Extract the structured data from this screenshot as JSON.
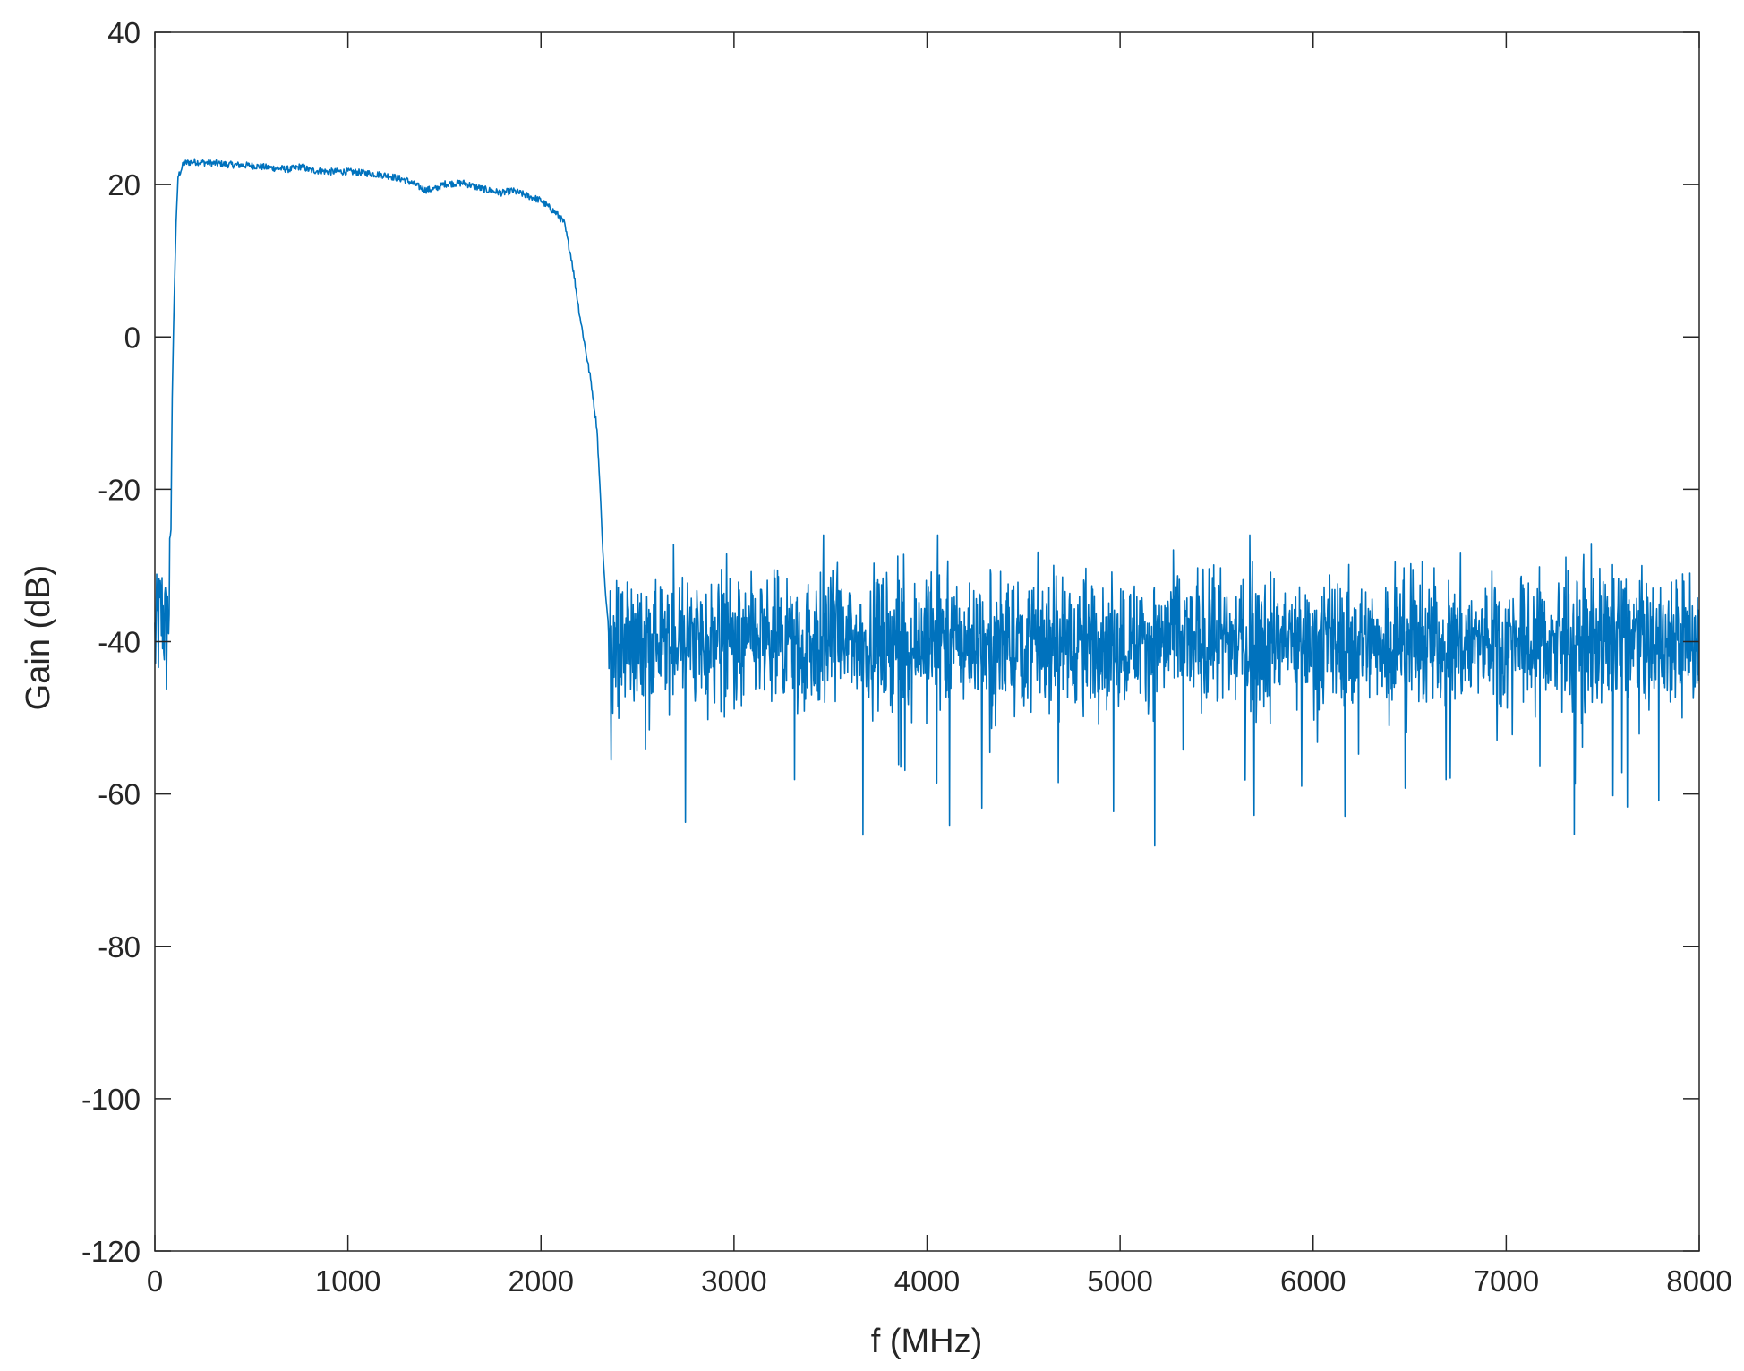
{
  "chart_data": {
    "type": "line",
    "title": "",
    "xlabel": "f (MHz)",
    "ylabel": "Gain (dB)",
    "xlim": [
      0,
      8000
    ],
    "ylim": [
      -120,
      40
    ],
    "xticks": [
      0,
      1000,
      2000,
      3000,
      4000,
      5000,
      6000,
      7000,
      8000
    ],
    "yticks": [
      40,
      20,
      0,
      -20,
      -40,
      -60,
      -80,
      -100,
      -120
    ],
    "grid": false,
    "box": true,
    "series": [
      {
        "color": "#0072BD",
        "passband": [
          [
            0,
            -40
          ],
          [
            40,
            -36
          ],
          [
            60,
            -40
          ],
          [
            80,
            -32
          ],
          [
            90,
            -8
          ],
          [
            100,
            5
          ],
          [
            110,
            15
          ],
          [
            120,
            21
          ],
          [
            150,
            22.8
          ],
          [
            200,
            23
          ],
          [
            300,
            22.8
          ],
          [
            400,
            22.6
          ],
          [
            500,
            22.5
          ],
          [
            600,
            22.2
          ],
          [
            700,
            22
          ],
          [
            760,
            22.4
          ],
          [
            800,
            21.9
          ],
          [
            900,
            21.7
          ],
          [
            1000,
            21.7
          ],
          [
            1100,
            21.5
          ],
          [
            1200,
            21.2
          ],
          [
            1300,
            20.6
          ],
          [
            1400,
            19.3
          ],
          [
            1450,
            19.4
          ],
          [
            1500,
            20.1
          ],
          [
            1600,
            20.2
          ],
          [
            1700,
            19.4
          ],
          [
            1800,
            18.9
          ],
          [
            1850,
            19.2
          ],
          [
            1900,
            18.8
          ],
          [
            2000,
            17.9
          ],
          [
            2080,
            16.2
          ],
          [
            2120,
            15
          ],
          [
            2160,
            10
          ],
          [
            2200,
            3
          ],
          [
            2240,
            -3
          ],
          [
            2260,
            -6
          ],
          [
            2290,
            -12
          ],
          [
            2310,
            -22
          ],
          [
            2320,
            -28
          ],
          [
            2335,
            -34
          ],
          [
            2350,
            -38
          ]
        ],
        "noise": {
          "x_range": [
            2350,
            8000
          ],
          "mean_db": -40,
          "max_db": -26,
          "min_db": -68
        }
      }
    ]
  }
}
